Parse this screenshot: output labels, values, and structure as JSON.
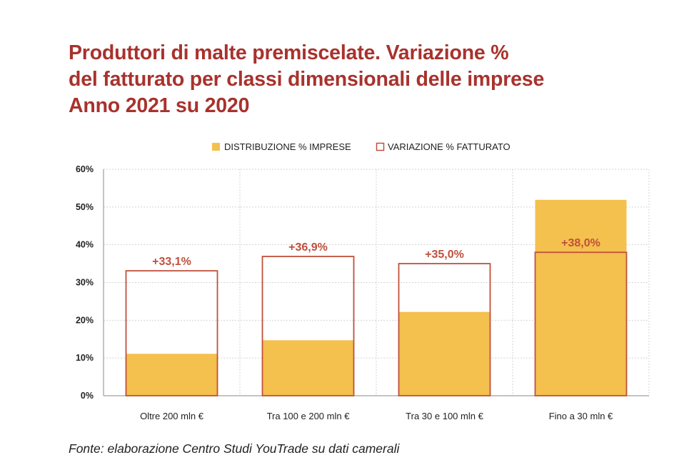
{
  "title_lines": [
    "Produttori di malte premiscelate. Variazione %",
    "del fatturato per classi dimensionali delle imprese",
    "Anno 2021 su 2020"
  ],
  "source": "Fonte: elaborazione Centro Studi YouTrade su dati camerali",
  "colors": {
    "title": "#a8322d",
    "distribution_fill": "#f4c04e",
    "variation_stroke": "#c0503c",
    "value_label": "#c0503c",
    "grid": "#d3d3d3"
  },
  "chart_data": {
    "type": "bar",
    "categories": [
      "Oltre 200 mln €",
      "Tra 100 e 200 mln €",
      "Tra 30 e 100 mln €",
      "Fino a 30 mln €"
    ],
    "series": [
      {
        "name": "DISTRIBUZIONE % IMPRESE",
        "style": "filled",
        "values": [
          11.1,
          14.7,
          22.2,
          51.9
        ]
      },
      {
        "name": "VARIAZIONE % FATTURATO",
        "style": "outline",
        "values": [
          33.1,
          36.9,
          35.0,
          38.0
        ]
      }
    ],
    "value_labels": [
      "+33,1%",
      "+36,9%",
      "+35,0%",
      "+38,0%"
    ],
    "y_ticks": [
      "0%",
      "10%",
      "20%",
      "30%",
      "40%",
      "50%",
      "60%"
    ],
    "ylim": [
      0,
      60
    ],
    "grid": true,
    "legend": "top"
  }
}
